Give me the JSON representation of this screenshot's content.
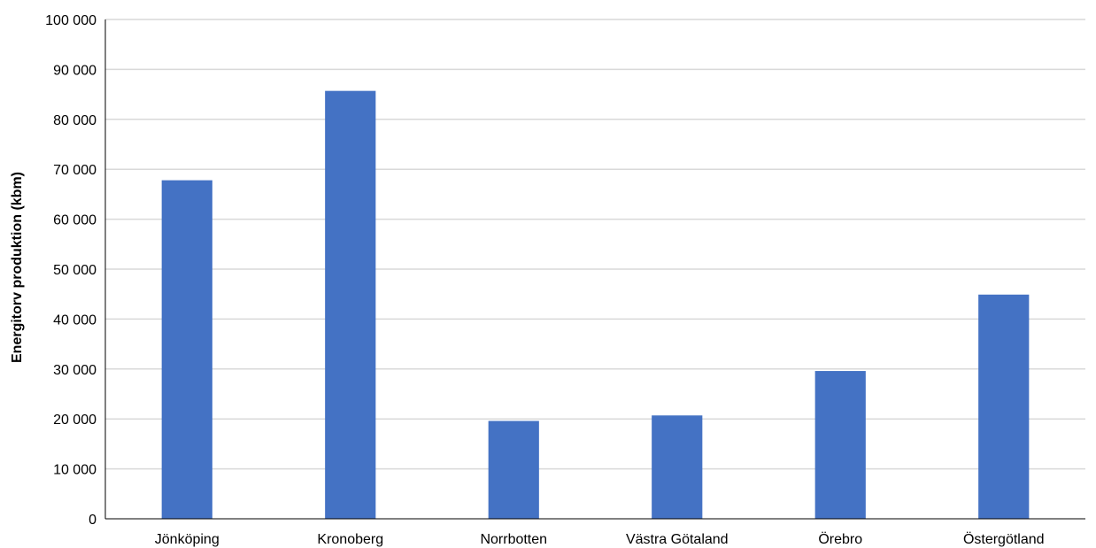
{
  "chart_data": {
    "type": "bar",
    "title": "",
    "xlabel": "",
    "ylabel": "Energitorv produktion (kbm)",
    "ylim": [
      0,
      100000
    ],
    "yticks": [
      0,
      10000,
      20000,
      30000,
      40000,
      50000,
      60000,
      70000,
      80000,
      90000,
      100000
    ],
    "ytick_labels": [
      "0",
      "10 000",
      "20 000",
      "30 000",
      "40 000",
      "50 000",
      "60 000",
      "70 000",
      "80 000",
      "90 000",
      "100 000"
    ],
    "categories": [
      "Jönköping",
      "Kronoberg",
      "Norrbotten",
      "Västra Götaland",
      "Örebro",
      "Östergötland"
    ],
    "values": [
      67800,
      85700,
      19600,
      20700,
      29600,
      44900
    ],
    "bar_color": "#4472C4",
    "grid": true,
    "legend": "none"
  }
}
